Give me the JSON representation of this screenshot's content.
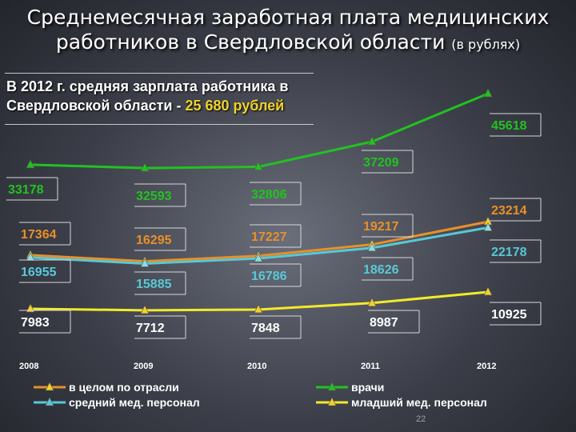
{
  "title": {
    "line1": "Среднемесячная заработная плата медицинских",
    "line2": "работников в Свердловской области",
    "line2_small": "(в рублях)"
  },
  "note": {
    "text": "В 2012 г. средняя зарплата работника в Свердловской области -",
    "value": "25 680 рублей"
  },
  "page_number": "22",
  "chart_data": {
    "type": "line",
    "categories": [
      "2008",
      "2009",
      "2010",
      "2011",
      "2012"
    ],
    "series": [
      {
        "name": "врачи",
        "color": "#22c21f",
        "values": [
          33178,
          32593,
          32806,
          37209,
          45618
        ]
      },
      {
        "name": "в целом по отрасли",
        "color": "#e8902a",
        "values": [
          17364,
          16295,
          17227,
          19217,
          23214
        ]
      },
      {
        "name": "средний мед. персонал",
        "color": "#59c8d6",
        "values": [
          16955,
          15885,
          16786,
          18626,
          22178
        ]
      },
      {
        "name": "младший мед. персонал",
        "color": "#f3ea2a",
        "values": [
          7983,
          7712,
          7848,
          8987,
          10925
        ]
      }
    ],
    "labels": {
      "врачи": [
        "33178",
        "32593",
        "32806",
        "37209",
        "45618"
      ],
      "в целом по отрасли": [
        "17364",
        "16295",
        "17227",
        "19217",
        "23214"
      ],
      "средний мед. персонал": [
        "16955",
        "15885",
        "16786",
        "18626",
        "22178"
      ],
      "младший мед. персонал": [
        "7983",
        "7712",
        "7848",
        "8987",
        "10925"
      ]
    },
    "legend": [
      {
        "name": "в целом по отрасли",
        "marker_color": "#f3d02a"
      },
      {
        "name": "врачи",
        "marker_color": "#22c21f"
      },
      {
        "name": "средний мед. персонал",
        "marker_color": "#59c8d6"
      },
      {
        "name": "младший мед. персонал",
        "marker_color": "#f3d02a"
      }
    ]
  }
}
